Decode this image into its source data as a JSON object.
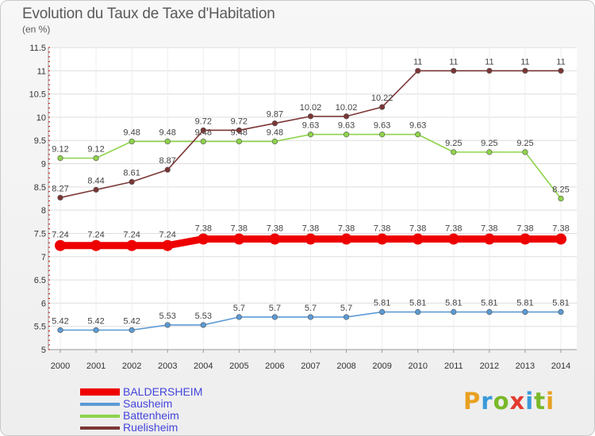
{
  "header": {
    "title": "Evolution du Taux de Taxe d'Habitation",
    "subtitle": "(en %)"
  },
  "brand": {
    "letters": [
      "P",
      "r",
      "o",
      "x",
      "i",
      "t",
      "i"
    ],
    "colors": [
      "#e8a020",
      "#3a9ad9",
      "#7ab929",
      "#e33b2f",
      "#3a9ad9",
      "#7ab929",
      "#e8a020"
    ]
  },
  "chart_data": {
    "type": "line",
    "title": "Evolution du Taux de Taxe d'Habitation",
    "ylabel": "(en %)",
    "xlabel": "",
    "x": [
      "2000",
      "2001",
      "2002",
      "2003",
      "2004",
      "2005",
      "2006",
      "2007",
      "2008",
      "2009",
      "2010",
      "2011",
      "2012",
      "2013",
      "2014"
    ],
    "ylim": [
      5,
      11.5
    ],
    "yticks": [
      "5",
      "5.5",
      "6",
      "6.5",
      "7",
      "7.5",
      "8",
      "8.5",
      "9",
      "9.5",
      "10",
      "10.5",
      "11",
      "11.5"
    ],
    "grid": true,
    "legend_position": "bottom-left",
    "series": [
      {
        "name": "BALDERSHEIM",
        "color": "#ee0000",
        "emphasis": true,
        "values": [
          7.24,
          7.24,
          7.24,
          7.24,
          7.38,
          7.38,
          7.38,
          7.38,
          7.38,
          7.38,
          7.38,
          7.38,
          7.38,
          7.38,
          7.38
        ],
        "labels": [
          "7.24",
          "7.24",
          "7.24",
          "7.24",
          "7.38",
          "7.38",
          "7.38",
          "7.38",
          "7.38",
          "7.38",
          "7.38",
          "7.38",
          "7.38",
          "7.38",
          "7.38"
        ]
      },
      {
        "name": "Sausheim",
        "color": "#5b9bd5",
        "values": [
          5.42,
          5.42,
          5.42,
          5.53,
          5.53,
          5.7,
          5.7,
          5.7,
          5.7,
          5.81,
          5.81,
          5.81,
          5.81,
          5.81,
          5.81
        ],
        "labels": [
          "5.42",
          "5.42",
          "5.42",
          "5.53",
          "5.53",
          "5.7",
          "5.7",
          "5.7",
          "5.7",
          "5.81",
          "5.81",
          "5.81",
          "5.81",
          "5.81",
          "5.81"
        ]
      },
      {
        "name": "Battenheim",
        "color": "#8ed34a",
        "values": [
          9.12,
          9.12,
          9.48,
          9.48,
          9.48,
          9.48,
          9.48,
          9.63,
          9.63,
          9.63,
          9.63,
          9.25,
          9.25,
          9.25,
          8.25
        ],
        "labels": [
          "9.12",
          "9.12",
          "9.48",
          "9.48",
          "9.48",
          "9.48",
          "9.48",
          "9.63",
          "9.63",
          "9.63",
          "9.63",
          "9.25",
          "9.25",
          "9.25",
          "8.25"
        ]
      },
      {
        "name": "Ruelisheim",
        "color": "#7b3636",
        "values": [
          8.27,
          8.44,
          8.61,
          8.87,
          9.72,
          9.72,
          9.87,
          10.02,
          10.02,
          10.22,
          11,
          11,
          11,
          11,
          11
        ],
        "labels": [
          "8.27",
          "8.44",
          "8.61",
          "8.87",
          "9.72",
          "9.72",
          "9.87",
          "10.02",
          "10.02",
          "10.22",
          "11",
          "11",
          "11",
          "11",
          "11"
        ]
      }
    ]
  }
}
